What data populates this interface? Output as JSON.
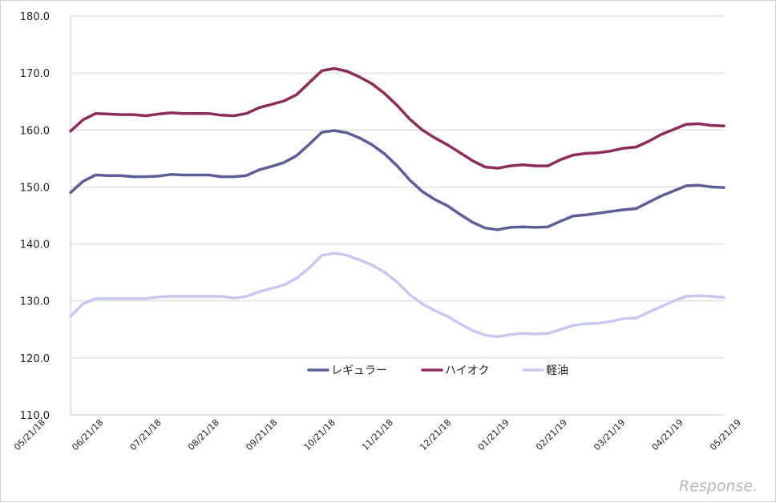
{
  "chart_data": {
    "type": "line",
    "title": "",
    "xlabel": "",
    "ylabel": "",
    "ylim": [
      110,
      180
    ],
    "yticks": [
      "110.0",
      "120.0",
      "130.0",
      "140.0",
      "150.0",
      "160.0",
      "170.0",
      "180.0"
    ],
    "xtick_labels": [
      "05/21/18",
      "06/21/18",
      "07/21/18",
      "08/21/18",
      "09/21/18",
      "10/21/18",
      "11/21/18",
      "12/21/18",
      "01/21/19",
      "02/21/19",
      "03/21/19",
      "04/21/19",
      "05/21/19"
    ],
    "grid": "horizontal",
    "legend_position": "bottom-center",
    "series": [
      {
        "name": "レギュラー",
        "color": "#5e5e96",
        "values": [
          149.0,
          151.0,
          152.1,
          152.0,
          152.0,
          151.8,
          151.8,
          151.9,
          152.2,
          152.1,
          152.1,
          152.1,
          151.8,
          151.8,
          152.0,
          153.0,
          153.6,
          154.3,
          155.5,
          157.5,
          159.6,
          159.9,
          159.5,
          158.6,
          157.4,
          155.8,
          153.7,
          151.2,
          149.2,
          147.8,
          146.7,
          145.2,
          143.8,
          142.8,
          142.5,
          142.9,
          143.0,
          142.9,
          143.0,
          144.0,
          144.9,
          145.1,
          145.4,
          145.7,
          146.0,
          146.2,
          147.3,
          148.4,
          149.3,
          150.2,
          150.3,
          150.0,
          149.9
        ]
      },
      {
        "name": "ハイオク",
        "color": "#8c2c5a",
        "values": [
          159.8,
          161.8,
          162.9,
          162.8,
          162.7,
          162.7,
          162.5,
          162.8,
          163.0,
          162.9,
          162.9,
          162.9,
          162.6,
          162.5,
          162.9,
          163.9,
          164.5,
          165.1,
          166.2,
          168.3,
          170.4,
          170.8,
          170.3,
          169.3,
          168.1,
          166.4,
          164.3,
          161.9,
          160.0,
          158.6,
          157.4,
          156.0,
          154.6,
          153.5,
          153.3,
          153.7,
          153.9,
          153.7,
          153.7,
          154.8,
          155.6,
          155.9,
          156.0,
          156.3,
          156.8,
          157.0,
          158.0,
          159.2,
          160.1,
          161.0,
          161.1,
          160.8,
          160.7
        ]
      },
      {
        "name": "軽油",
        "color": "#c8c8ee",
        "values": [
          127.3,
          129.5,
          130.4,
          130.4,
          130.4,
          130.4,
          130.4,
          130.7,
          130.8,
          130.8,
          130.8,
          130.8,
          130.8,
          130.5,
          130.8,
          131.6,
          132.2,
          132.8,
          134.0,
          135.8,
          138.0,
          138.4,
          138.0,
          137.2,
          136.3,
          135.0,
          133.3,
          131.1,
          129.5,
          128.3,
          127.3,
          126.0,
          124.8,
          124.0,
          123.7,
          124.1,
          124.3,
          124.2,
          124.3,
          125.0,
          125.7,
          126.0,
          126.1,
          126.4,
          126.9,
          127.0,
          128.0,
          129.0,
          130.0,
          130.8,
          130.9,
          130.8,
          130.6
        ]
      }
    ]
  },
  "watermark": "Response."
}
